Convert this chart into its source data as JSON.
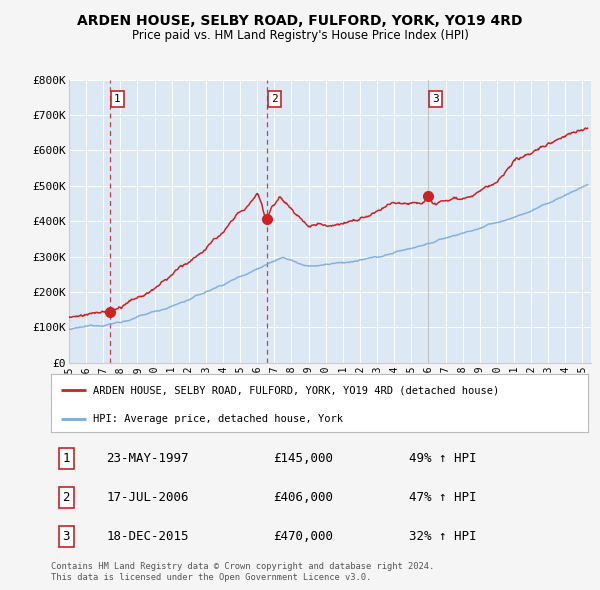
{
  "title1": "ARDEN HOUSE, SELBY ROAD, FULFORD, YORK, YO19 4RD",
  "title2": "Price paid vs. HM Land Registry's House Price Index (HPI)",
  "plot_bg_color": "#dde8f5",
  "grid_color": "#ffffff",
  "fig_bg_color": "#f5f5f5",
  "ylim": [
    0,
    800000
  ],
  "yticks": [
    0,
    100000,
    200000,
    300000,
    400000,
    500000,
    600000,
    700000,
    800000
  ],
  "ytick_labels": [
    "£0",
    "£100K",
    "£200K",
    "£300K",
    "£400K",
    "£500K",
    "£600K",
    "£700K",
    "£800K"
  ],
  "xlim_start": 1995.0,
  "xlim_end": 2025.5,
  "sale_dates": [
    1997.39,
    2006.54,
    2015.97
  ],
  "sale_prices": [
    145000,
    406000,
    470000
  ],
  "sale_labels": [
    "1",
    "2",
    "3"
  ],
  "red_line_color": "#cc2222",
  "blue_line_color": "#7aacdd",
  "legend_label_red": "ARDEN HOUSE, SELBY ROAD, FULFORD, YORK, YO19 4RD (detached house)",
  "legend_label_blue": "HPI: Average price, detached house, York",
  "table_entries": [
    {
      "label": "1",
      "date": "23-MAY-1997",
      "price": "£145,000",
      "hpi": "49% ↑ HPI"
    },
    {
      "label": "2",
      "date": "17-JUL-2006",
      "price": "£406,000",
      "hpi": "47% ↑ HPI"
    },
    {
      "label": "3",
      "date": "18-DEC-2015",
      "price": "£470,000",
      "hpi": "32% ↑ HPI"
    }
  ],
  "footer1": "Contains HM Land Registry data © Crown copyright and database right 2024.",
  "footer2": "This data is licensed under the Open Government Licence v3.0."
}
